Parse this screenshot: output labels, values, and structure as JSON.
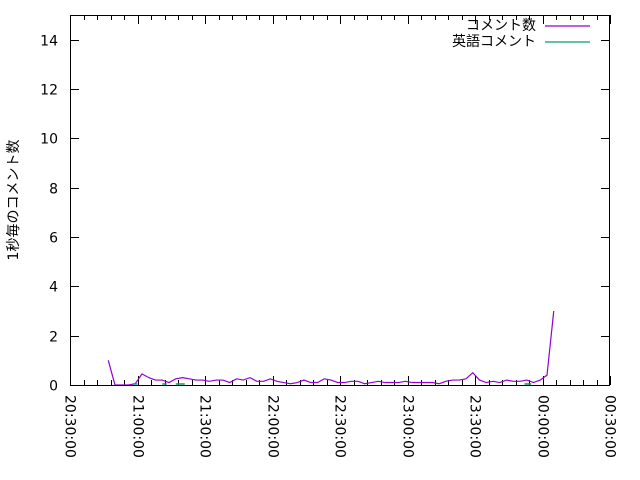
{
  "chart_data": {
    "type": "line",
    "title": "",
    "xlabel": "",
    "ylabel": "1秒毎のコメント数",
    "xlim": [
      "20:30:00",
      "00:30:00"
    ],
    "ylim": [
      0,
      15
    ],
    "x_ticks": [
      "20:30:00",
      "21:00:00",
      "21:30:00",
      "22:00:00",
      "22:30:00",
      "23:00:00",
      "23:30:00",
      "00:00:00",
      "00:30:00"
    ],
    "y_ticks": [
      "0",
      "2",
      "4",
      "6",
      "8",
      "10",
      "12",
      "14"
    ],
    "grid": false,
    "legend": "top-right",
    "series": [
      {
        "name": "コメント数",
        "color": "#9400d3",
        "x": [
          "20:47",
          "20:50",
          "20:53",
          "20:56",
          "20:59",
          "21:02",
          "21:05",
          "21:08",
          "21:11",
          "21:14",
          "21:17",
          "21:20",
          "21:23",
          "21:26",
          "21:29",
          "21:32",
          "21:35",
          "21:38",
          "21:41",
          "21:44",
          "21:47",
          "21:50",
          "21:53",
          "21:56",
          "21:59",
          "22:02",
          "22:05",
          "22:08",
          "22:11",
          "22:14",
          "22:17",
          "22:20",
          "22:23",
          "22:26",
          "22:29",
          "22:32",
          "22:35",
          "22:38",
          "22:41",
          "22:44",
          "22:47",
          "22:50",
          "22:53",
          "22:56",
          "22:59",
          "23:02",
          "23:05",
          "23:08",
          "23:11",
          "23:14",
          "23:17",
          "23:20",
          "23:23",
          "23:26",
          "23:29",
          "23:32",
          "23:35",
          "23:38",
          "23:41",
          "23:44",
          "23:47",
          "23:50",
          "23:53",
          "23:56",
          "23:59",
          "00:02",
          "00:05"
        ],
        "values": [
          1.0,
          0,
          0,
          0,
          0.05,
          0.45,
          0.3,
          0.2,
          0.2,
          0.1,
          0.25,
          0.3,
          0.25,
          0.2,
          0.2,
          0.15,
          0.2,
          0.2,
          0.1,
          0.25,
          0.2,
          0.3,
          0.15,
          0.15,
          0.25,
          0.15,
          0.1,
          0.05,
          0.1,
          0.2,
          0.1,
          0.1,
          0.25,
          0.2,
          0.1,
          0.1,
          0.15,
          0.15,
          0.05,
          0.1,
          0.15,
          0.1,
          0.1,
          0.1,
          0.15,
          0.1,
          0.1,
          0.1,
          0.1,
          0.05,
          0.15,
          0.2,
          0.2,
          0.25,
          0.5,
          0.2,
          0.1,
          0.15,
          0.1,
          0.2,
          0.15,
          0.15,
          0.2,
          0.1,
          0.2,
          0.4,
          3.0
        ]
      },
      {
        "name": "英語コメント",
        "color": "#009e73",
        "segments": [
          {
            "x": [
              "20:58",
              "21:00"
            ],
            "values": [
              0,
              0
            ]
          },
          {
            "x": [
              "21:11",
              "21:13"
            ],
            "values": [
              0,
              0
            ]
          },
          {
            "x": [
              "21:17",
              "21:21"
            ],
            "values": [
              0,
              0
            ]
          },
          {
            "x": [
              "23:52",
              "23:55"
            ],
            "values": [
              0,
              0
            ]
          }
        ]
      }
    ]
  }
}
